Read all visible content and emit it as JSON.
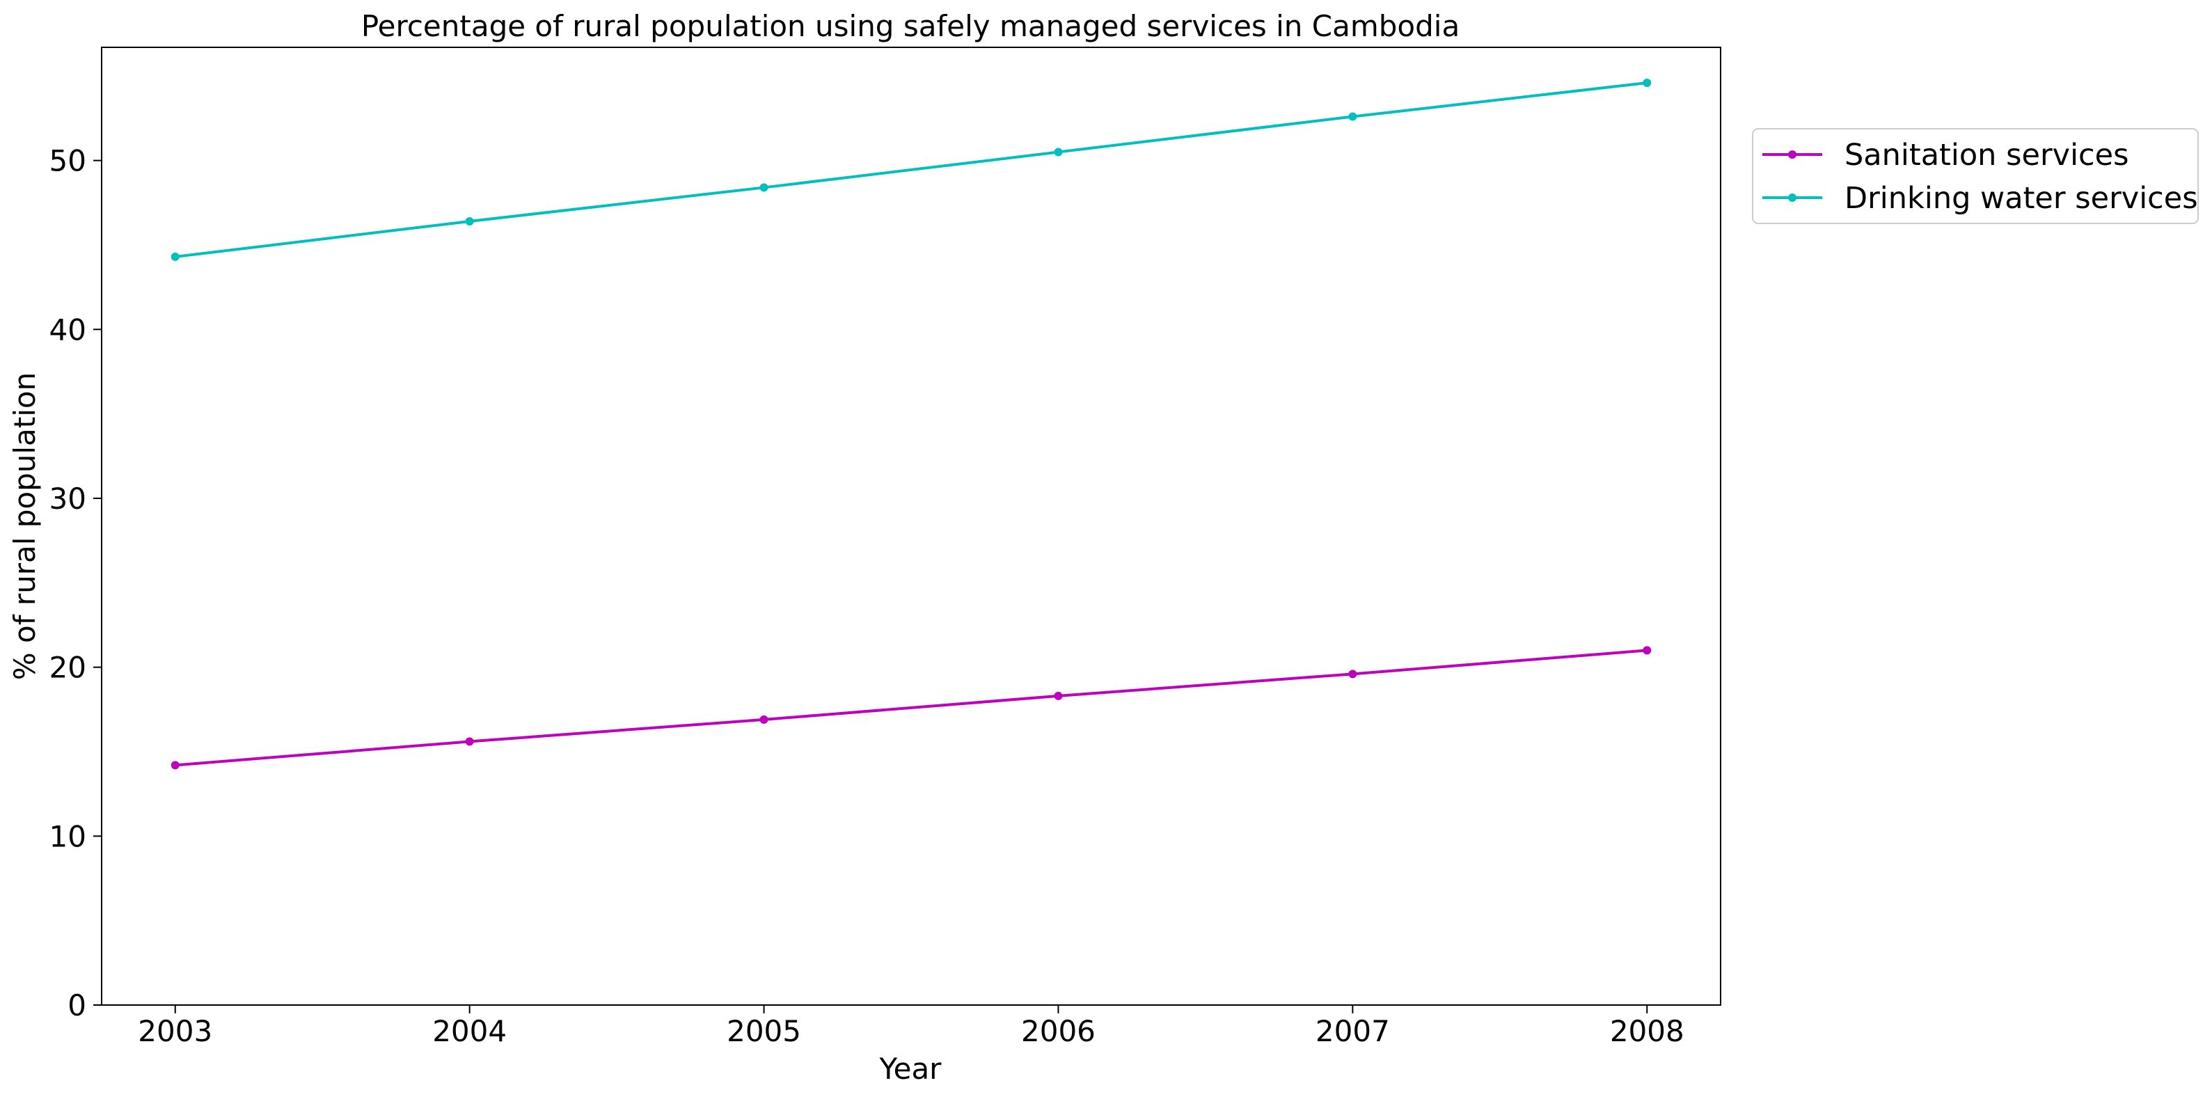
{
  "chart_data": {
    "type": "line",
    "title": "Percentage of rural population using safely managed services in Cambodia",
    "xlabel": "Year",
    "ylabel": "% of rural population",
    "x": [
      2003,
      2004,
      2005,
      2006,
      2007,
      2008
    ],
    "xlim": [
      2002.75,
      2008.25
    ],
    "ylim": [
      0,
      56.7
    ],
    "yticks": [
      0,
      10,
      20,
      30,
      40,
      50
    ],
    "grid": false,
    "legend_position": "outside-top-right",
    "series": [
      {
        "name": "Sanitation services",
        "color": "#bf00bf",
        "values": [
          14.2,
          15.6,
          16.9,
          18.3,
          19.6,
          21.0
        ]
      },
      {
        "name": "Drinking water services",
        "color": "#00bfbf",
        "values": [
          44.3,
          46.4,
          48.4,
          50.5,
          52.6,
          54.6
        ]
      }
    ]
  }
}
